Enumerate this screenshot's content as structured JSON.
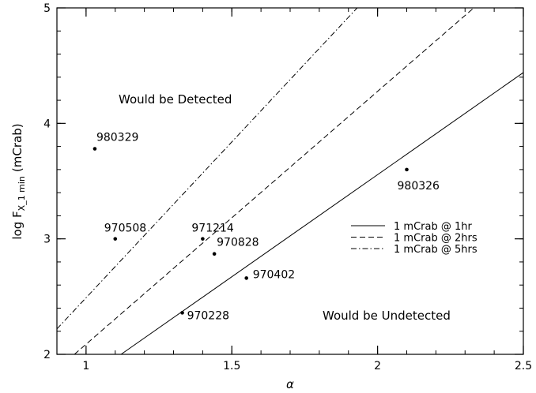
{
  "chart_data": {
    "type": "scatter",
    "xlabel": "α",
    "ylabel": {
      "main": "log F",
      "sub": "X_1 min",
      "unit": "(mCrab)"
    },
    "xlim": [
      0.9,
      2.5
    ],
    "ylim": [
      2,
      5
    ],
    "x_ticks": [
      {
        "value": 1,
        "label": "1"
      },
      {
        "value": 1.5,
        "label": "1.5"
      },
      {
        "value": 2,
        "label": "2"
      },
      {
        "value": 2.5,
        "label": "2.5"
      }
    ],
    "y_ticks": [
      {
        "value": 2,
        "label": "2"
      },
      {
        "value": 3,
        "label": "3"
      },
      {
        "value": 4,
        "label": "4"
      },
      {
        "value": 5,
        "label": "5"
      }
    ],
    "grid": false,
    "points": [
      {
        "label": "980329",
        "x": 1.03,
        "y": 3.78
      },
      {
        "label": "970508",
        "x": 1.1,
        "y": 3.0
      },
      {
        "label": "971214",
        "x": 1.4,
        "y": 3.0
      },
      {
        "label": "970828",
        "x": 1.44,
        "y": 2.87
      },
      {
        "label": "970402",
        "x": 1.55,
        "y": 2.66
      },
      {
        "label": "970228",
        "x": 1.33,
        "y": 2.36
      },
      {
        "label": "980326",
        "x": 2.1,
        "y": 3.6
      }
    ],
    "lines": [
      {
        "name": "1 mCrab @ 1hr",
        "style": "solid",
        "x": [
          1.12,
          2.5
        ],
        "y": [
          2.0,
          4.44
        ]
      },
      {
        "name": "1 mCrab @ 2hrs",
        "style": "dashed",
        "x": [
          0.96,
          2.33
        ],
        "y": [
          2.0,
          5.0
        ]
      },
      {
        "name": "1 mCrab @ 5hrs",
        "style": "dashdot",
        "x": [
          0.9,
          1.93
        ],
        "y": [
          2.22,
          5.0
        ]
      }
    ],
    "legend": {
      "position": "right"
    },
    "annotations": [
      {
        "text": "Would be Detected"
      },
      {
        "text": "Would be Undetected"
      }
    ]
  }
}
